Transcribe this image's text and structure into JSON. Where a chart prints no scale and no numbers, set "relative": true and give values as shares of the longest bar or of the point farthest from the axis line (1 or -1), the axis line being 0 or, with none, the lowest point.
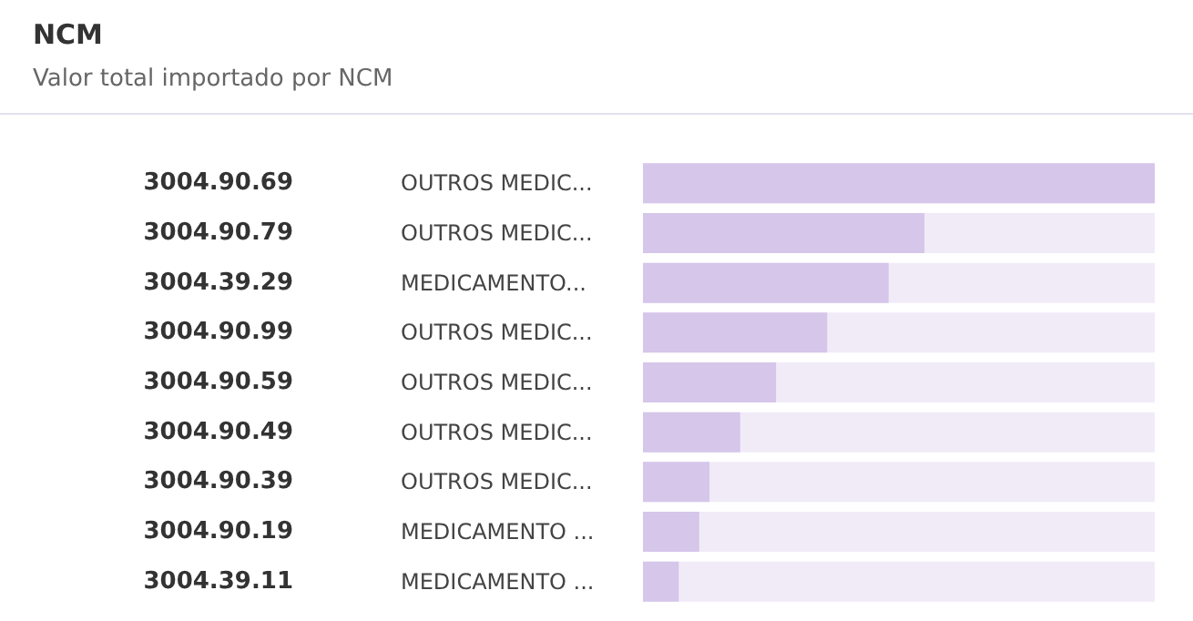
{
  "chart_data": {
    "type": "bar",
    "orientation": "horizontal",
    "relative": true,
    "title": "NCM",
    "subtitle": "Valor total importado por NCM",
    "categories": [
      "3004.90.69",
      "3004.90.79",
      "3004.39.29",
      "3004.90.99",
      "3004.90.59",
      "3004.90.49",
      "3004.90.39",
      "3004.90.19",
      "3004.39.11"
    ],
    "y2_categories": [
      "OUTROS MEDIC...",
      "OUTROS MEDIC...",
      "MEDICAMENTO...",
      "OUTROS MEDIC...",
      "OUTROS MEDIC...",
      "OUTROS MEDIC...",
      "OUTROS MEDIC...",
      "MEDICAMENTO ...",
      "MEDICAMENTO ..."
    ],
    "values": [
      1,
      0.55,
      0.48,
      0.36,
      0.26,
      0.19,
      0.13,
      0.11,
      0.07
    ],
    "color": "#d5c6ea"
  }
}
